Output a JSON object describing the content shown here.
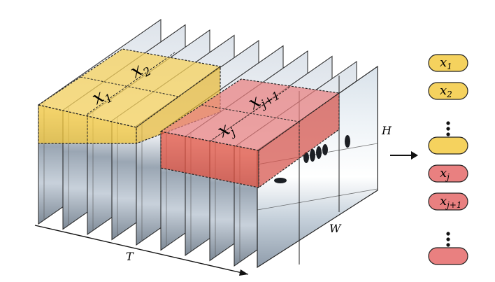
{
  "axes": {
    "time": "T",
    "height": "H",
    "width": "W"
  },
  "tubes": {
    "x1": {
      "base": "x",
      "sub": "1"
    },
    "x2": {
      "base": "x",
      "sub": "2"
    },
    "xj": {
      "base": "x",
      "sub": "j"
    },
    "xj1": {
      "base": "x",
      "sub": "j+1"
    }
  },
  "tokens": [
    {
      "base": "x",
      "sub": "1",
      "color": "yellow"
    },
    {
      "base": "x",
      "sub": "2",
      "color": "yellow"
    },
    {
      "ellipsis": true
    },
    {
      "base": "",
      "sub": "",
      "color": "yellow"
    },
    {
      "base": "x",
      "sub": "j",
      "color": "red"
    },
    {
      "base": "x",
      "sub": "j+1",
      "color": "red"
    },
    {
      "ellipsis": true
    },
    {
      "base": "",
      "sub": "",
      "color": "red"
    }
  ],
  "colors": {
    "yellow": "#f5d25e",
    "yellow_stroke": "#b8901f",
    "yellow_overlay": "#f2c53a",
    "red": "#e98080",
    "red_stroke": "#b44545",
    "red_overlay": "#e0503f",
    "frame_sky": "#c9d3de",
    "frame_ice": "#eef2f6",
    "frame_shadow": "#5f6b78"
  }
}
